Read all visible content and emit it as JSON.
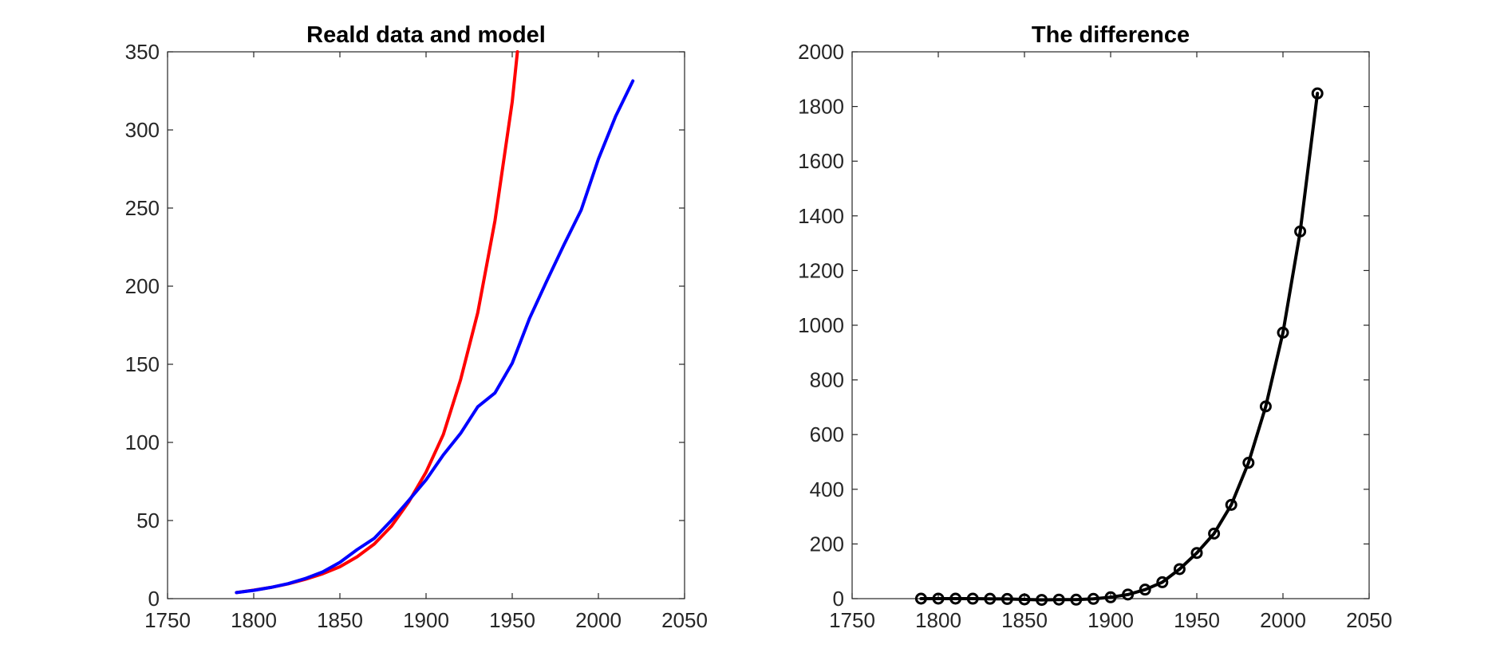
{
  "chart_data": [
    {
      "type": "line",
      "title": "Reald data and model",
      "xlabel": "",
      "ylabel": "",
      "xlim": [
        1750,
        2050
      ],
      "ylim": [
        0,
        350
      ],
      "xticks": [
        "1750",
        "1800",
        "1850",
        "1900",
        "1950",
        "2000",
        "2050"
      ],
      "yticks": [
        "0",
        "50",
        "100",
        "150",
        "200",
        "250",
        "300",
        "350"
      ],
      "grid": false,
      "legend": "none",
      "series": [
        {
          "color": "#ff0000",
          "x": [
            1790,
            1800,
            1810,
            1820,
            1830,
            1840,
            1850,
            1860,
            1870,
            1880,
            1890,
            1900,
            1910,
            1920,
            1930,
            1940,
            1950,
            1953
          ],
          "y": [
            3.9,
            5.4,
            7.2,
            9.5,
            12.4,
            15.9,
            20.4,
            26.8,
            35.0,
            46.5,
            62.0,
            81.0,
            105.0,
            140.0,
            183.0,
            242.0,
            318.0,
            350.0
          ]
        },
        {
          "color": "#0000ff",
          "x": [
            1790,
            1800,
            1810,
            1820,
            1830,
            1840,
            1850,
            1860,
            1870,
            1880,
            1890,
            1900,
            1910,
            1920,
            1930,
            1940,
            1950,
            1960,
            1970,
            1980,
            1990,
            2000,
            2010,
            2020
          ],
          "y": [
            3.9,
            5.3,
            7.2,
            9.6,
            12.9,
            17.1,
            23.2,
            31.4,
            38.6,
            50.2,
            62.9,
            76.0,
            92.0,
            105.7,
            122.8,
            131.7,
            150.7,
            179.3,
            203.2,
            226.5,
            248.7,
            281.4,
            308.7,
            331.4
          ]
        }
      ]
    },
    {
      "type": "line",
      "title": "The difference",
      "xlabel": "",
      "ylabel": "",
      "xlim": [
        1750,
        2050
      ],
      "ylim": [
        0,
        2000
      ],
      "xticks": [
        "1750",
        "1800",
        "1850",
        "1900",
        "1950",
        "2000",
        "2050"
      ],
      "yticks": [
        "0",
        "200",
        "400",
        "600",
        "800",
        "1000",
        "1200",
        "1400",
        "1600",
        "1800",
        "2000"
      ],
      "grid": false,
      "legend": "none",
      "markers": "circle",
      "series": [
        {
          "color": "#000000",
          "x": [
            1790,
            1800,
            1810,
            1820,
            1830,
            1840,
            1850,
            1860,
            1870,
            1880,
            1890,
            1900,
            1910,
            1920,
            1930,
            1940,
            1950,
            1960,
            1970,
            1980,
            1990,
            2000,
            2010,
            2020
          ],
          "y": [
            0,
            0.1,
            0,
            -0.1,
            -0.5,
            -1.2,
            -2.8,
            -4.6,
            -3.6,
            -3.7,
            -0.9,
            5,
            15,
            33,
            60,
            108,
            167,
            238,
            343,
            497,
            703,
            973,
            1343,
            1848
          ]
        }
      ]
    }
  ]
}
